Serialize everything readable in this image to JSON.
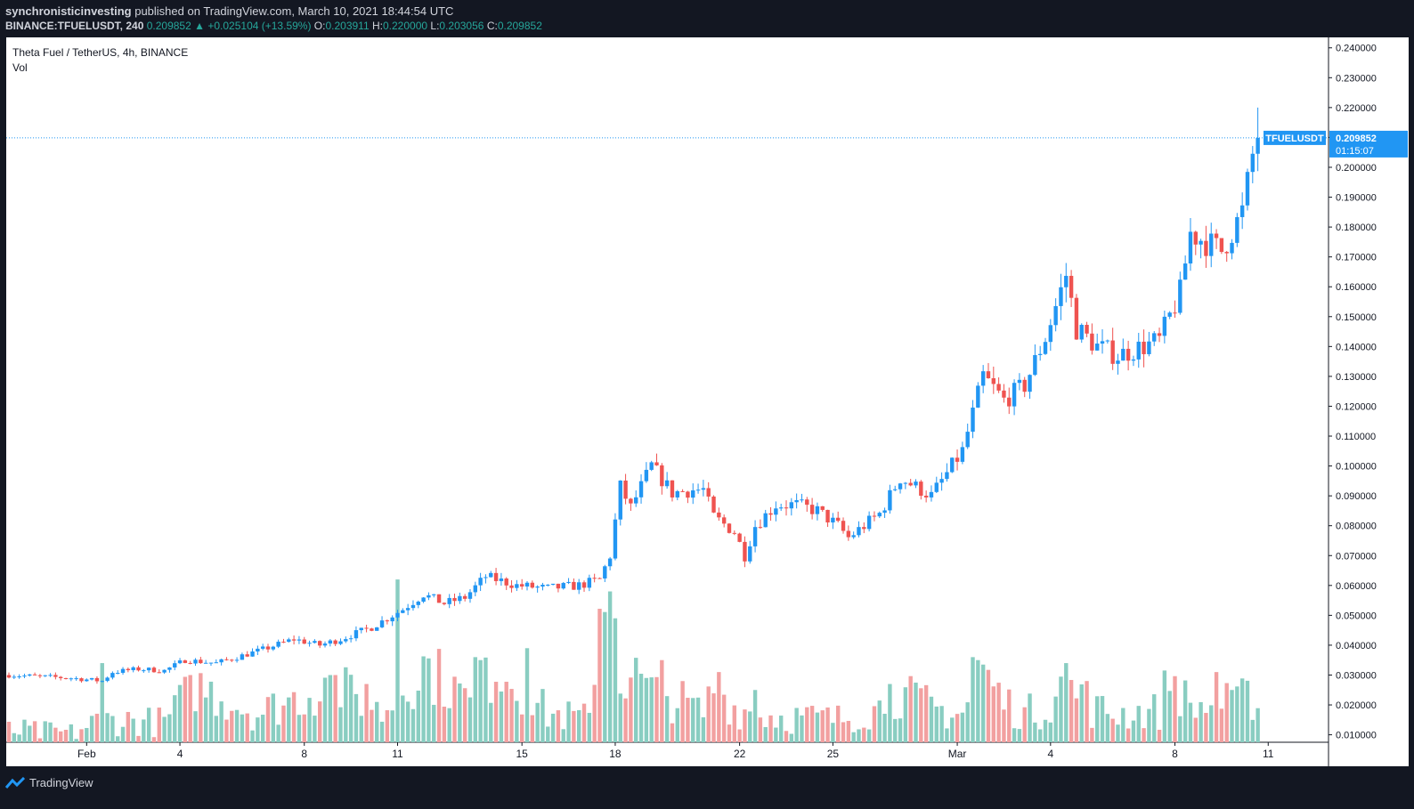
{
  "header": {
    "publisher": "synchronisticinvesting",
    "published_text": "published on TradingView.com, March 10, 2021 18:44:54 UTC",
    "symbol": "BINANCE:TFUELUSDT,",
    "interval": "240",
    "last": "0.209852",
    "arrow": "▲",
    "change": "+0.025104 (+13.59%)",
    "o_label": "O:",
    "o": "0.203911",
    "h_label": "H:",
    "h": "0.220000",
    "l_label": "L:",
    "l": "0.203056",
    "c_label": "C:",
    "c": "0.209852"
  },
  "legend": {
    "title": "Theta Fuel / TetherUS, 4h, BINANCE",
    "vol": "Vol"
  },
  "price_tag": {
    "symbol": "TFUELUSDT",
    "price": "0.209852",
    "countdown": "01:15:07"
  },
  "footer": {
    "brand": "TradingView"
  },
  "colors": {
    "up": "#2196f3",
    "down": "#ef5350",
    "vol_up": "#89cdc1",
    "vol_down": "#f2a0a0",
    "tag": "#2196f3"
  },
  "chart_data": {
    "type": "candlestick",
    "x_ticks": [
      "Feb",
      "4",
      "8",
      "11",
      "15",
      "18",
      "22",
      "25",
      "Mar",
      "4",
      "8",
      "11"
    ],
    "y_ticks": [
      "0.010000",
      "0.020000",
      "0.030000",
      "0.040000",
      "0.050000",
      "0.060000",
      "0.070000",
      "0.080000",
      "0.090000",
      "0.100000",
      "0.110000",
      "0.120000",
      "0.130000",
      "0.140000",
      "0.150000",
      "0.160000",
      "0.170000",
      "0.180000",
      "0.190000",
      "0.200000",
      "0.210000",
      "0.220000",
      "0.230000",
      "0.240000"
    ],
    "ylim": [
      0.0075,
      0.2435
    ],
    "last_close": 0.209852,
    "grid": false,
    "close_key": [
      [
        0,
        0.03
      ],
      [
        12,
        0.029
      ],
      [
        18,
        0.028
      ],
      [
        20,
        0.031
      ],
      [
        25,
        0.032
      ],
      [
        30,
        0.0315
      ],
      [
        34,
        0.035
      ],
      [
        40,
        0.034
      ],
      [
        48,
        0.038
      ],
      [
        55,
        0.042
      ],
      [
        60,
        0.04
      ],
      [
        64,
        0.042
      ],
      [
        70,
        0.046
      ],
      [
        76,
        0.052
      ],
      [
        80,
        0.057
      ],
      [
        84,
        0.054
      ],
      [
        88,
        0.056
      ],
      [
        92,
        0.063
      ],
      [
        98,
        0.06
      ],
      [
        104,
        0.059
      ],
      [
        110,
        0.06
      ],
      [
        114,
        0.062
      ],
      [
        116,
        0.07
      ],
      [
        118,
        0.093
      ],
      [
        120,
        0.086
      ],
      [
        124,
        0.1
      ],
      [
        128,
        0.091
      ],
      [
        132,
        0.092
      ],
      [
        134,
        0.092
      ],
      [
        136,
        0.083
      ],
      [
        140,
        0.078
      ],
      [
        142,
        0.07
      ],
      [
        144,
        0.08
      ],
      [
        148,
        0.087
      ],
      [
        152,
        0.087
      ],
      [
        156,
        0.085
      ],
      [
        160,
        0.08
      ],
      [
        162,
        0.076
      ],
      [
        168,
        0.084
      ],
      [
        172,
        0.096
      ],
      [
        178,
        0.09
      ],
      [
        184,
        0.105
      ],
      [
        188,
        0.13
      ],
      [
        192,
        0.122
      ],
      [
        196,
        0.127
      ],
      [
        200,
        0.143
      ],
      [
        204,
        0.164
      ],
      [
        206,
        0.146
      ],
      [
        210,
        0.14
      ],
      [
        214,
        0.137
      ],
      [
        222,
        0.142
      ],
      [
        226,
        0.158
      ],
      [
        228,
        0.178
      ],
      [
        234,
        0.172
      ],
      [
        238,
        0.185
      ],
      [
        240,
        0.204
      ],
      [
        241,
        0.2098
      ]
    ],
    "volume_key": [
      [
        0,
        0.012
      ],
      [
        12,
        0.011
      ],
      [
        18,
        0.016
      ],
      [
        30,
        0.015
      ],
      [
        36,
        0.028
      ],
      [
        48,
        0.018
      ],
      [
        56,
        0.024
      ],
      [
        62,
        0.028
      ],
      [
        68,
        0.023
      ],
      [
        72,
        0.018
      ],
      [
        80,
        0.035
      ],
      [
        90,
        0.021
      ],
      [
        94,
        0.036
      ],
      [
        104,
        0.018
      ],
      [
        112,
        0.016
      ],
      [
        114,
        0.06
      ],
      [
        116,
        0.052
      ],
      [
        118,
        0.03
      ],
      [
        120,
        0.033
      ],
      [
        124,
        0.025
      ],
      [
        130,
        0.022
      ],
      [
        134,
        0.018
      ],
      [
        136,
        0.028
      ],
      [
        140,
        0.02
      ],
      [
        148,
        0.017
      ],
      [
        160,
        0.016
      ],
      [
        168,
        0.02
      ],
      [
        170,
        0.026
      ],
      [
        180,
        0.019
      ],
      [
        184,
        0.018
      ],
      [
        188,
        0.033
      ],
      [
        192,
        0.022
      ],
      [
        196,
        0.018
      ],
      [
        200,
        0.02
      ],
      [
        204,
        0.03
      ],
      [
        208,
        0.02
      ],
      [
        214,
        0.018
      ],
      [
        222,
        0.019
      ],
      [
        224,
        0.032
      ],
      [
        228,
        0.02
      ],
      [
        234,
        0.021
      ],
      [
        241,
        0.024
      ]
    ],
    "volume_spikes": [
      [
        18,
        0.034
      ],
      [
        35,
        0.03
      ],
      [
        62,
        0.03
      ],
      [
        63,
        0.03
      ],
      [
        69,
        0.027
      ],
      [
        75,
        0.062
      ],
      [
        90,
        0.036
      ],
      [
        91,
        0.035
      ],
      [
        100,
        0.039
      ],
      [
        116,
        0.058
      ],
      [
        117,
        0.049
      ],
      [
        126,
        0.035
      ],
      [
        137,
        0.031
      ],
      [
        144,
        0.025
      ],
      [
        170,
        0.027
      ],
      [
        186,
        0.036
      ],
      [
        187,
        0.035
      ],
      [
        204,
        0.034
      ],
      [
        208,
        0.028
      ],
      [
        233,
        0.031
      ],
      [
        236,
        0.025
      ]
    ],
    "n_candles": 242
  }
}
